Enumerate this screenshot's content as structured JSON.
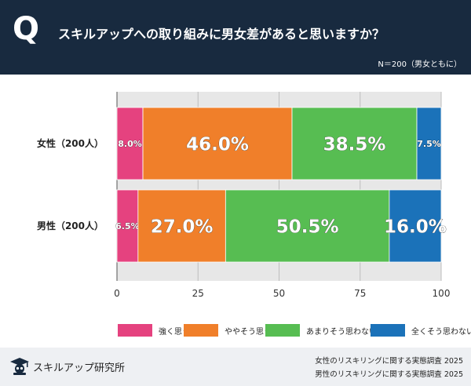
{
  "header": {
    "q_mark": "Q",
    "question": "スキルアップへの取り組みに男女差があると思いますか？",
    "sample": "N＝200（男女ともに）"
  },
  "chart_data": {
    "type": "bar",
    "orientation": "horizontal",
    "stacked": true,
    "categories": [
      "女性（200人）",
      "男性（200人）"
    ],
    "series": [
      {
        "name": "強く思う",
        "color": "#e5427f",
        "values": [
          8.0,
          6.5
        ]
      },
      {
        "name": "ややそう思う",
        "color": "#f07f2a",
        "values": [
          46.0,
          27.0
        ]
      },
      {
        "name": "あまりそう思わない",
        "color": "#57bd52",
        "values": [
          38.5,
          50.5
        ]
      },
      {
        "name": "全くそう思わない",
        "color": "#1b72b9",
        "values": [
          7.5,
          16.0
        ]
      }
    ],
    "value_labels": [
      [
        "8.0%",
        "46.0%",
        "38.5%",
        "7.5%"
      ],
      [
        "6.5%",
        "27.0%",
        "50.5%",
        "16.0%"
      ]
    ],
    "xlim": [
      0,
      100
    ],
    "xticks": [
      "0",
      "25",
      "50",
      "75",
      "100"
    ],
    "grid": true,
    "legend_position": "bottom"
  },
  "footer": {
    "brand": "スキルアップ研究所",
    "source_1": "女性のリスキリングに関する実態調査 2025",
    "source_2": "男性のリスキリングに関する実態調査 2025"
  }
}
